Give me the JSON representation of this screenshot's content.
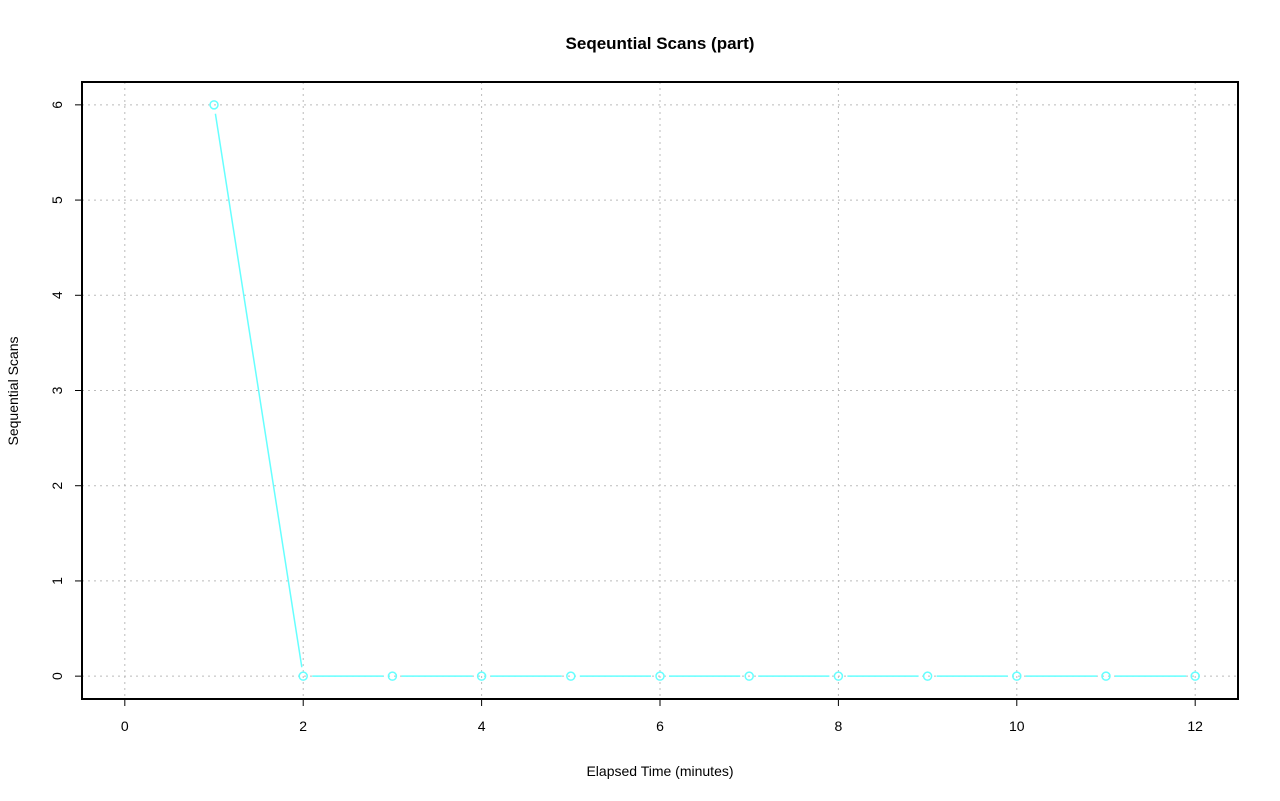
{
  "chart_data": {
    "type": "line",
    "title": "Seqeuntial Scans (part)",
    "xlabel": "Elapsed Time (minutes)",
    "ylabel": "Sequential Scans",
    "xlim": [
      -0.48,
      12.48
    ],
    "ylim": [
      -0.24,
      6.24
    ],
    "xticks": [
      0,
      2,
      4,
      6,
      8,
      10,
      12
    ],
    "yticks": [
      0,
      1,
      2,
      3,
      4,
      5,
      6
    ],
    "grid": true,
    "series": [
      {
        "color": "#66ffff",
        "x": [
          1,
          2,
          3,
          4,
          5,
          6,
          7,
          8,
          9,
          10,
          11,
          12
        ],
        "y": [
          6,
          0,
          0,
          0,
          0,
          0,
          0,
          0,
          0,
          0,
          0,
          0
        ]
      }
    ]
  }
}
